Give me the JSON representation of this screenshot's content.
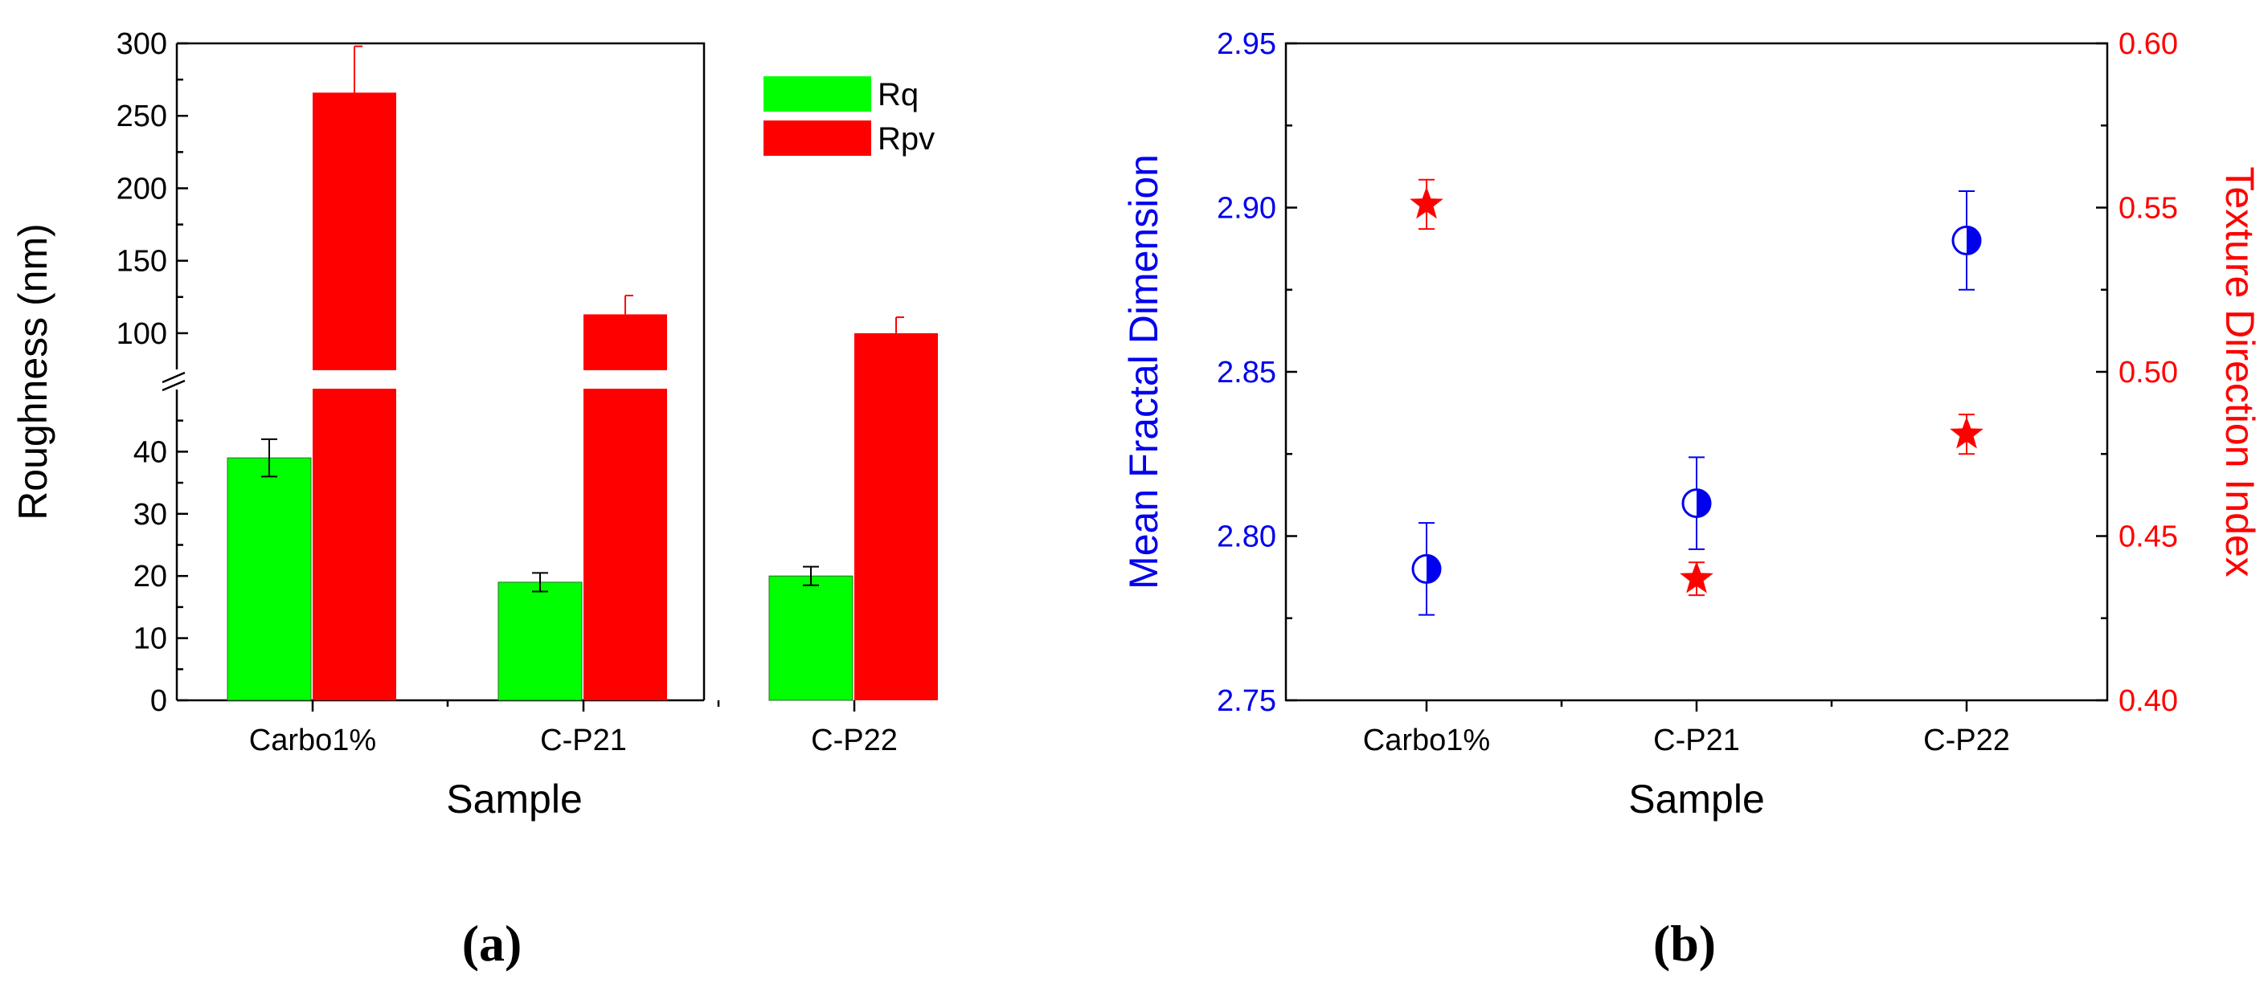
{
  "chart_data": [
    {
      "type": "bar",
      "panel_label": "(a)",
      "xlabel": "Sample",
      "ylabel": "Roughness (nm)",
      "categories": [
        "Carbo1%",
        "C-P21",
        "C-P22"
      ],
      "series": [
        {
          "name": "Rq",
          "color": "#00ff00",
          "values": [
            39,
            19,
            20
          ],
          "errors": [
            3,
            1.5,
            1.5
          ]
        },
        {
          "name": "Rpv",
          "color": "#ff0000",
          "values": [
            266,
            113,
            100
          ],
          "errors": [
            32,
            13,
            11
          ]
        }
      ],
      "axis_break": {
        "lower_range": [
          0,
          50
        ],
        "upper_range": [
          75,
          300
        ]
      },
      "yticks_lower": [
        "0",
        "10",
        "20",
        "30",
        "40"
      ],
      "yticks_upper": [
        "100",
        "150",
        "200",
        "250",
        "300"
      ],
      "legend_position": "top-right",
      "grid": false
    },
    {
      "type": "scatter",
      "panel_label": "(b)",
      "xlabel": "Sample",
      "ylabel": "Mean Fractal Dimension",
      "ylabel_right": "Texture Direction Index",
      "categories": [
        "Carbo1%",
        "C-P21",
        "C-P22"
      ],
      "ylim": [
        2.75,
        2.95
      ],
      "ylim_right": [
        0.4,
        0.6
      ],
      "yticks_left": [
        "2.75",
        "2.80",
        "2.85",
        "2.90",
        "2.95"
      ],
      "yticks_right": [
        "0.40",
        "0.45",
        "0.50",
        "0.55",
        "0.60"
      ],
      "series": [
        {
          "axis": "left",
          "marker": "half-filled-circle",
          "color": "#0000ee",
          "values": [
            2.79,
            2.81,
            2.89
          ],
          "errors": [
            0.014,
            0.014,
            0.015
          ]
        },
        {
          "axis": "right",
          "marker": "star",
          "color": "#ff0000",
          "values": [
            0.551,
            0.437,
            0.481
          ],
          "errors": [
            0.0075,
            0.005,
            0.006
          ]
        }
      ],
      "grid": false
    }
  ]
}
